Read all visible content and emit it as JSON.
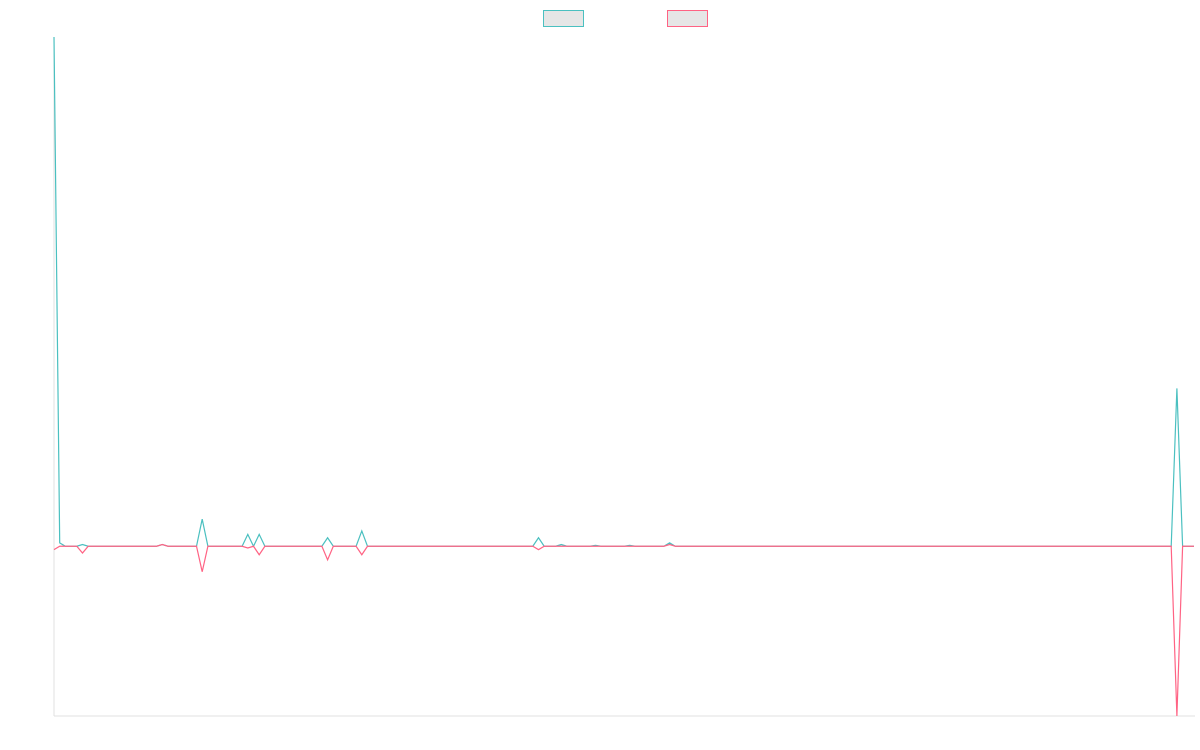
{
  "chart_data": {
    "type": "line",
    "legend": "top",
    "ylim": [
      -1,
      3
    ],
    "series": [
      {
        "color": "#4bc0c0",
        "values": [
          3,
          0.02,
          0,
          0,
          0,
          0.01,
          0,
          0,
          0,
          0,
          0,
          0,
          0,
          0,
          0,
          0,
          0,
          0,
          0,
          0.01,
          0,
          0,
          0,
          0,
          0,
          0,
          0.16,
          0,
          0,
          0,
          0,
          0,
          0,
          0,
          0.07,
          0,
          0.07,
          0,
          0,
          0,
          0,
          0,
          0,
          0,
          0,
          0,
          0,
          0,
          0.05,
          0,
          0,
          0,
          0,
          0,
          0.09,
          0,
          0,
          0,
          0,
          0,
          0,
          0,
          0,
          0,
          0,
          0,
          0,
          0,
          0,
          0,
          0,
          0,
          0,
          0,
          0,
          0,
          0,
          0,
          0,
          0,
          0,
          0,
          0,
          0,
          0,
          0.05,
          0,
          0,
          0,
          0.01,
          0,
          0,
          0,
          0,
          0,
          0.005,
          0,
          0,
          0,
          0,
          0,
          0.005,
          0,
          0,
          0,
          0,
          0,
          0,
          0.02,
          0,
          0,
          0,
          0,
          0,
          0,
          0,
          0,
          0,
          0,
          0,
          0,
          0,
          0,
          0,
          0,
          0,
          0,
          0,
          0,
          0,
          0,
          0,
          0,
          0,
          0,
          0,
          0,
          0,
          0,
          0,
          0,
          0,
          0,
          0,
          0,
          0,
          0,
          0,
          0,
          0,
          0,
          0,
          0,
          0,
          0,
          0,
          0,
          0,
          0,
          0,
          0,
          0,
          0,
          0,
          0,
          0,
          0,
          0,
          0,
          0,
          0,
          0,
          0,
          0,
          0,
          0,
          0,
          0,
          0,
          0,
          0,
          0,
          0,
          0,
          0,
          0,
          0,
          0,
          0,
          0,
          0,
          0,
          0,
          0,
          0,
          0,
          0,
          0.93,
          0,
          0,
          0
        ]
      },
      {
        "color": "#ff6384",
        "values": [
          -0.02,
          0,
          0,
          0,
          0,
          -0.04,
          0,
          0,
          0,
          0,
          0,
          0,
          0,
          0,
          0,
          0,
          0,
          0,
          0,
          0.01,
          0,
          0,
          0,
          0,
          0,
          0,
          -0.15,
          0,
          0,
          0,
          0,
          0,
          0,
          0,
          -0.01,
          0,
          -0.05,
          0,
          0,
          0,
          0,
          0,
          0,
          0,
          0,
          0,
          0,
          0,
          -0.08,
          0,
          0,
          0,
          0,
          0,
          -0.05,
          0,
          0,
          0,
          0,
          0,
          0,
          0,
          0,
          0,
          0,
          0,
          0,
          0,
          0,
          0,
          0,
          0,
          0,
          0,
          0,
          0,
          0,
          0,
          0,
          0,
          0,
          0,
          0,
          0,
          0,
          -0.02,
          0,
          0,
          0,
          0,
          0,
          0,
          0,
          0,
          0,
          0,
          0,
          0,
          0,
          0,
          0,
          0,
          0,
          0,
          0,
          0,
          0,
          0,
          0.01,
          0,
          0,
          0,
          0,
          0,
          0,
          0,
          0,
          0,
          0,
          0,
          0,
          0,
          0,
          0,
          0,
          0,
          0,
          0,
          0,
          0,
          0,
          0,
          0,
          0,
          0,
          0,
          0,
          0,
          0,
          0,
          0,
          0,
          0,
          0,
          0,
          0,
          0,
          0,
          0,
          0,
          0,
          0,
          0,
          0,
          0,
          0,
          0,
          0,
          0,
          0,
          0,
          0,
          0,
          0,
          0,
          0,
          0,
          0,
          0,
          0,
          0,
          0,
          0,
          0,
          0,
          0,
          0,
          0,
          0,
          0,
          0,
          0,
          0,
          0,
          0,
          0,
          0,
          0,
          0,
          0,
          0,
          0,
          0,
          0,
          0,
          0,
          0,
          -1,
          0,
          0,
          0
        ]
      }
    ]
  }
}
